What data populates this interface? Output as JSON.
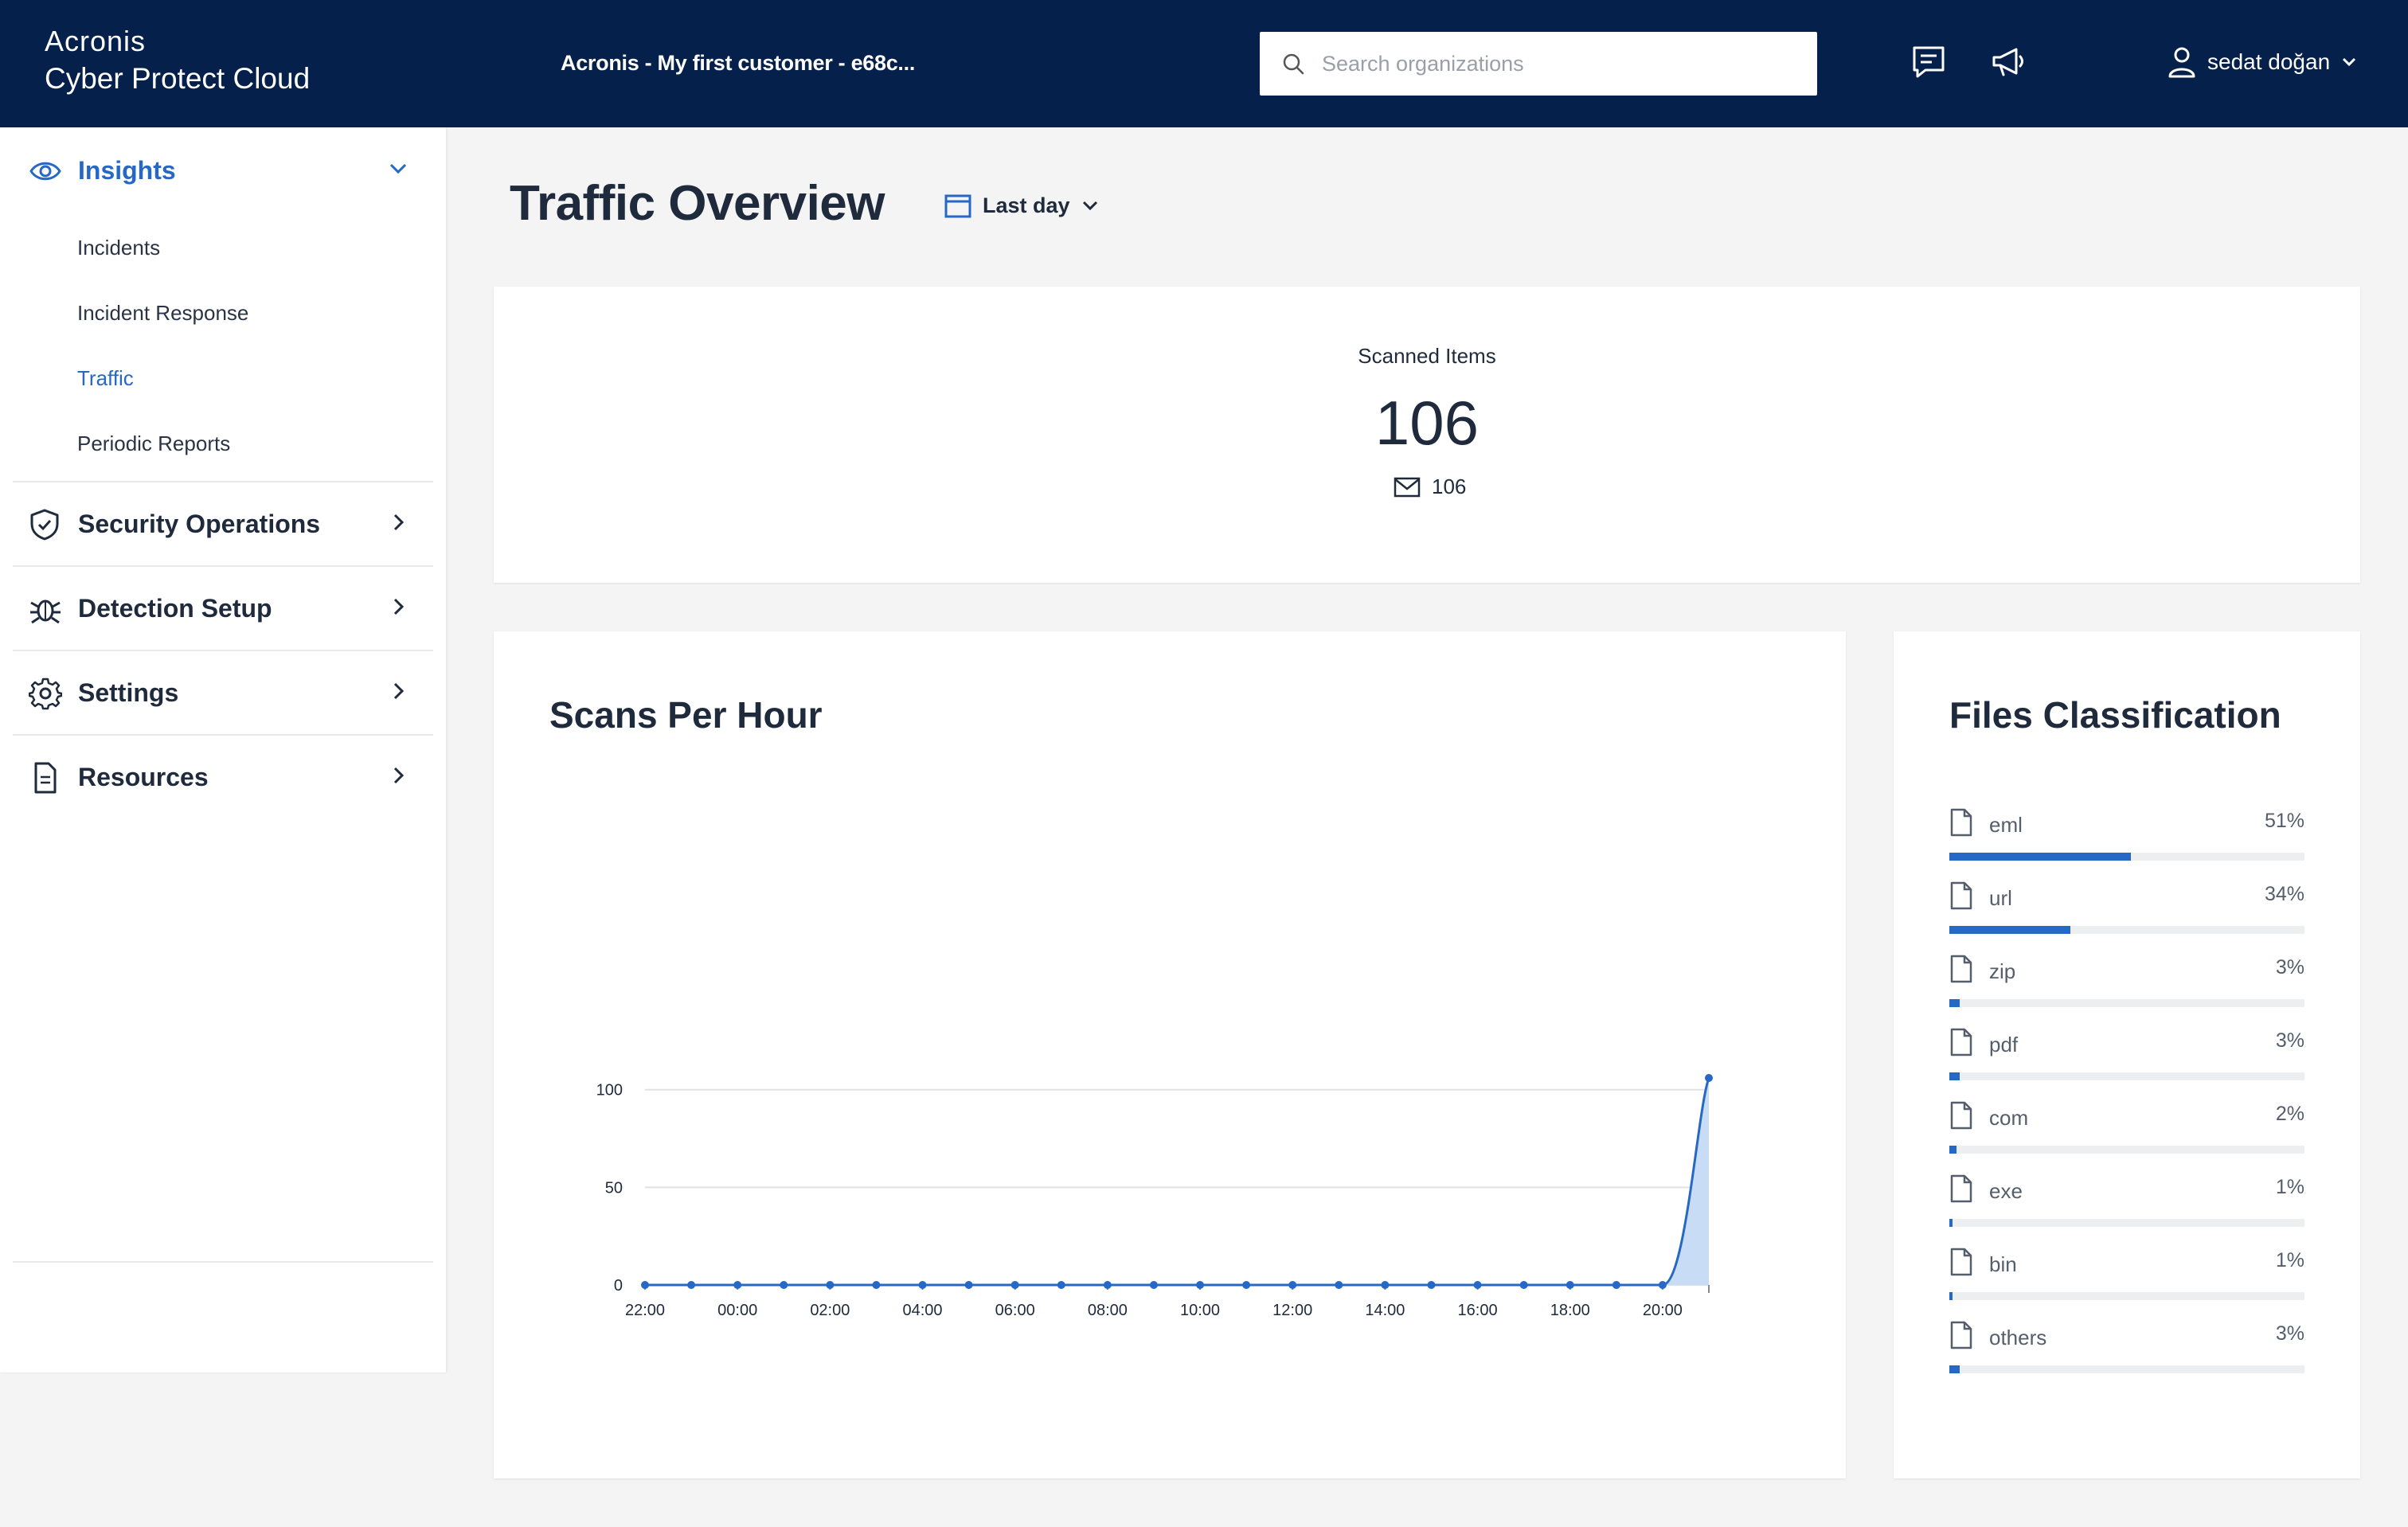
{
  "topbar": {
    "brand_top": "Acronis",
    "brand_bottom": "Cyber Protect Cloud",
    "tenant": "Acronis - My first customer - e68c...",
    "search_placeholder": "Search organizations",
    "icons": [
      "feedback-icon",
      "announcements-icon"
    ],
    "user": "sedat doğan"
  },
  "sidebar": {
    "groups": [
      {
        "label": "Insights",
        "icon": "eye-icon",
        "expanded": true,
        "items": [
          {
            "label": "Incidents"
          },
          {
            "label": "Incident Response"
          },
          {
            "label": "Traffic",
            "active": true
          },
          {
            "label": "Periodic Reports"
          }
        ]
      },
      {
        "label": "Security Operations",
        "icon": "shield-icon"
      },
      {
        "label": "Detection Setup",
        "icon": "bug-icon"
      },
      {
        "label": "Settings",
        "icon": "gear-icon"
      },
      {
        "label": "Resources",
        "icon": "document-icon"
      }
    ]
  },
  "main": {
    "title": "Traffic Overview",
    "range": "Last day",
    "scanned": {
      "title": "Scanned Items",
      "value": "106",
      "email_count": "106"
    },
    "scans_title": "Scans Per Hour",
    "files_title": "Files Classification",
    "files": [
      {
        "name": "eml",
        "pct": "51%",
        "value": 51
      },
      {
        "name": "url",
        "pct": "34%",
        "value": 34
      },
      {
        "name": "zip",
        "pct": "3%",
        "value": 3
      },
      {
        "name": "pdf",
        "pct": "3%",
        "value": 3
      },
      {
        "name": "com",
        "pct": "2%",
        "value": 2
      },
      {
        "name": "exe",
        "pct": "1%",
        "value": 1
      },
      {
        "name": "bin",
        "pct": "1%",
        "value": 1
      },
      {
        "name": "others",
        "pct": "3%",
        "value": 3
      }
    ]
  },
  "colors": {
    "topbar": "#04204b",
    "accent": "#2668c5",
    "area_fill": "#c9dcf5"
  },
  "chart_data": {
    "type": "area",
    "title": "Scans Per Hour",
    "x": [
      "22:00",
      "23:00",
      "00:00",
      "01:00",
      "02:00",
      "03:00",
      "04:00",
      "05:00",
      "06:00",
      "07:00",
      "08:00",
      "09:00",
      "10:00",
      "11:00",
      "12:00",
      "13:00",
      "14:00",
      "15:00",
      "16:00",
      "17:00",
      "18:00",
      "19:00",
      "20:00",
      "21:00"
    ],
    "values": [
      0,
      0,
      0,
      0,
      0,
      0,
      0,
      0,
      0,
      0,
      0,
      0,
      0,
      0,
      0,
      0,
      0,
      0,
      0,
      0,
      0,
      0,
      0,
      106
    ],
    "x_tick_labels": [
      "22:00",
      "00:00",
      "02:00",
      "04:00",
      "06:00",
      "08:00",
      "10:00",
      "12:00",
      "14:00",
      "16:00",
      "18:00",
      "20:00"
    ],
    "y_ticks": [
      "0",
      "50",
      "100"
    ],
    "ylim": [
      0,
      106
    ],
    "grid": "horizontal",
    "legend": "none"
  }
}
